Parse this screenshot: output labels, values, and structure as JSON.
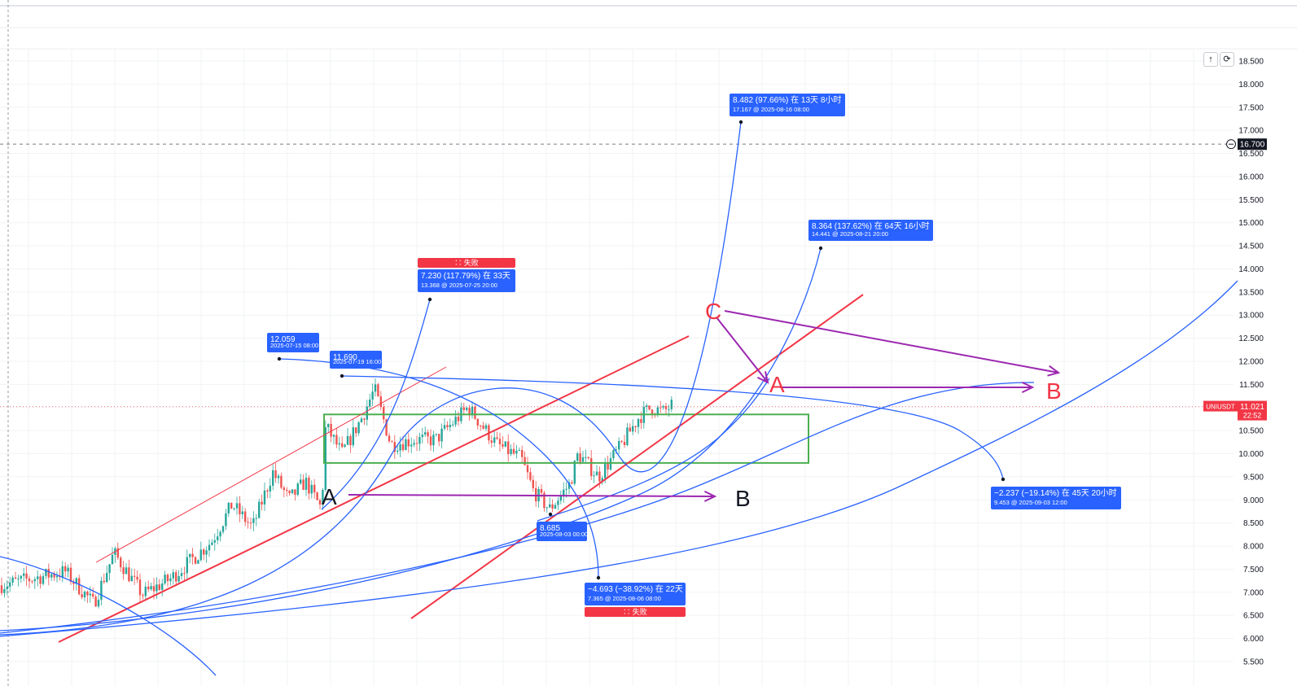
{
  "chart_data": {
    "type": "candlestick",
    "symbol": "UNIUSDT",
    "last_price": "11.021",
    "countdown": "22:52",
    "crosshair_price": "16.700",
    "y_axis": {
      "ylim": [
        4.95,
        18.75
      ],
      "ticks": [
        "18.500",
        "18.000",
        "17.500",
        "17.000",
        "16.500",
        "16.000",
        "15.500",
        "15.000",
        "14.500",
        "14.000",
        "13.500",
        "13.000",
        "12.500",
        "12.000",
        "11.500",
        "11.000",
        "10.500",
        "10.000",
        "9.500",
        "9.000",
        "8.500",
        "8.000",
        "7.500",
        "7.000",
        "6.500",
        "6.000",
        "5.500"
      ]
    },
    "range_box": {
      "top": 10.85,
      "bottom": 9.8,
      "color": "#4caf50"
    },
    "annotations": [
      {
        "id": "hi1",
        "text": "12.059",
        "sub": "2025-07-15 08:00",
        "price": 12.059,
        "color": "#2962ff"
      },
      {
        "id": "hi2",
        "text": "11.690",
        "sub": "2025-07-19 16:00",
        "price": 11.69,
        "color": "#2962ff"
      },
      {
        "id": "proj1",
        "text": "7.230 (117.79%) 在 33天",
        "sub": "13.368 @ 2025-07-25 20:00",
        "price": 13.368,
        "status": "∷ 失败",
        "color": "#2962ff"
      },
      {
        "id": "proj2",
        "text": "8.482 (97.66%) 在 13天 8小时",
        "sub": "17.167 @ 2025-08-16 08:00",
        "price": 17.167,
        "color": "#2962ff"
      },
      {
        "id": "proj3",
        "text": "8.364 (137.62%) 在 64天 16小时",
        "sub": "14.441 @ 2025-08-21 20:00",
        "price": 14.441,
        "color": "#2962ff"
      },
      {
        "id": "low1",
        "text": "8.685",
        "sub": "2025-08-03 00:00",
        "price": 8.685,
        "color": "#2962ff"
      },
      {
        "id": "proj4",
        "text": "−4.693 (−38.92%) 在 22天",
        "sub": "7.365 @ 2025-08-06 08:00",
        "price": 7.365,
        "status": "∷ 失败",
        "color": "#2962ff"
      },
      {
        "id": "proj5",
        "text": "−2.237 (−19.14%) 在 45天 20小时",
        "sub": "9.453 @ 2025-09-03 12:00",
        "price": 9.453,
        "color": "#2962ff"
      }
    ],
    "wave_labels": [
      {
        "text": "A",
        "color": "#131722"
      },
      {
        "text": "B",
        "color": "#131722"
      },
      {
        "text": "C",
        "color": "#f23645"
      },
      {
        "text": "A",
        "color": "#f23645"
      },
      {
        "text": "B",
        "color": "#f23645"
      }
    ],
    "colors": {
      "up": "#26a69a",
      "down": "#ef5350",
      "trend": "#f23645",
      "curve": "#2962ff",
      "arrow": "#9c27b0",
      "label": "#2962ff",
      "fail": "#f23645",
      "price_tag": "#f23645"
    }
  },
  "toolbar": {
    "up_icon": "arrow-up-icon",
    "refresh_icon": "refresh-icon"
  }
}
